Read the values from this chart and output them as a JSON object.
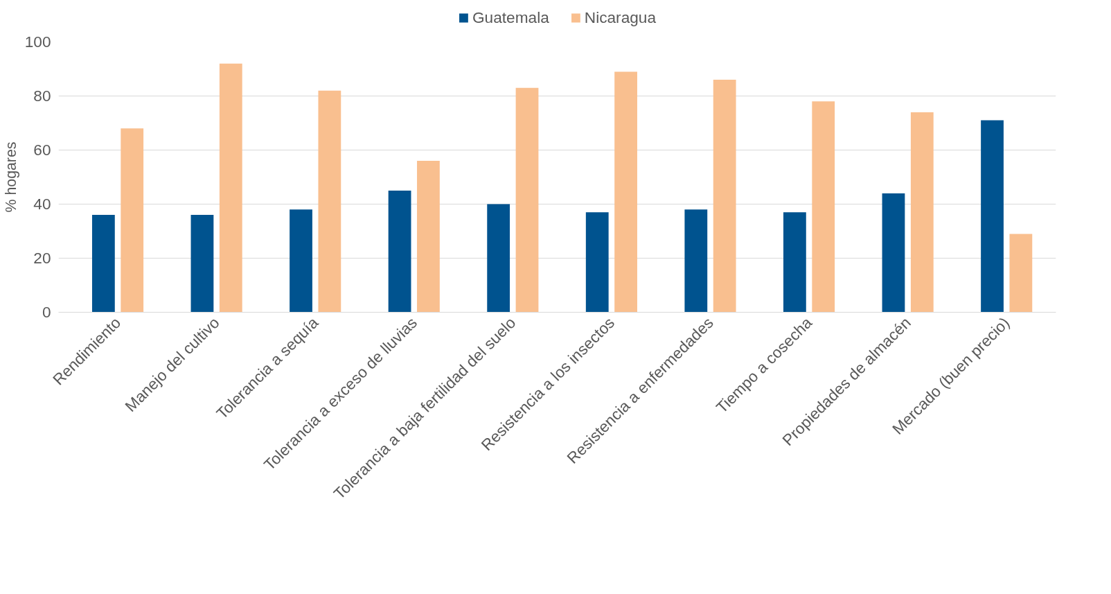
{
  "chart_data": {
    "type": "bar",
    "ylabel": "% hogares",
    "categories": [
      "Rendimiento",
      "Manejo del cultivo",
      "Tolerancia a sequía",
      "Tolerancia a exceso de lluvias",
      "Tolerancia a baja fertilidad del suelo",
      "Resistencia a los insectos",
      "Resistencia a enfermedades",
      "Tiempo a cosecha",
      "Propiedades de almacén",
      "Mercado (buen precio)"
    ],
    "series": [
      {
        "name": "Guatemala",
        "color": "#00538f",
        "values": [
          36,
          36,
          38,
          45,
          40,
          37,
          38,
          37,
          44,
          71
        ]
      },
      {
        "name": "Nicaragua",
        "color": "#f9bf8f",
        "values": [
          68,
          92,
          82,
          56,
          83,
          89,
          86,
          78,
          74,
          29
        ]
      }
    ],
    "ylim": [
      0,
      100
    ],
    "yticks": [
      0,
      20,
      40,
      60,
      80,
      100
    ],
    "grid": "y",
    "legend": "top"
  }
}
